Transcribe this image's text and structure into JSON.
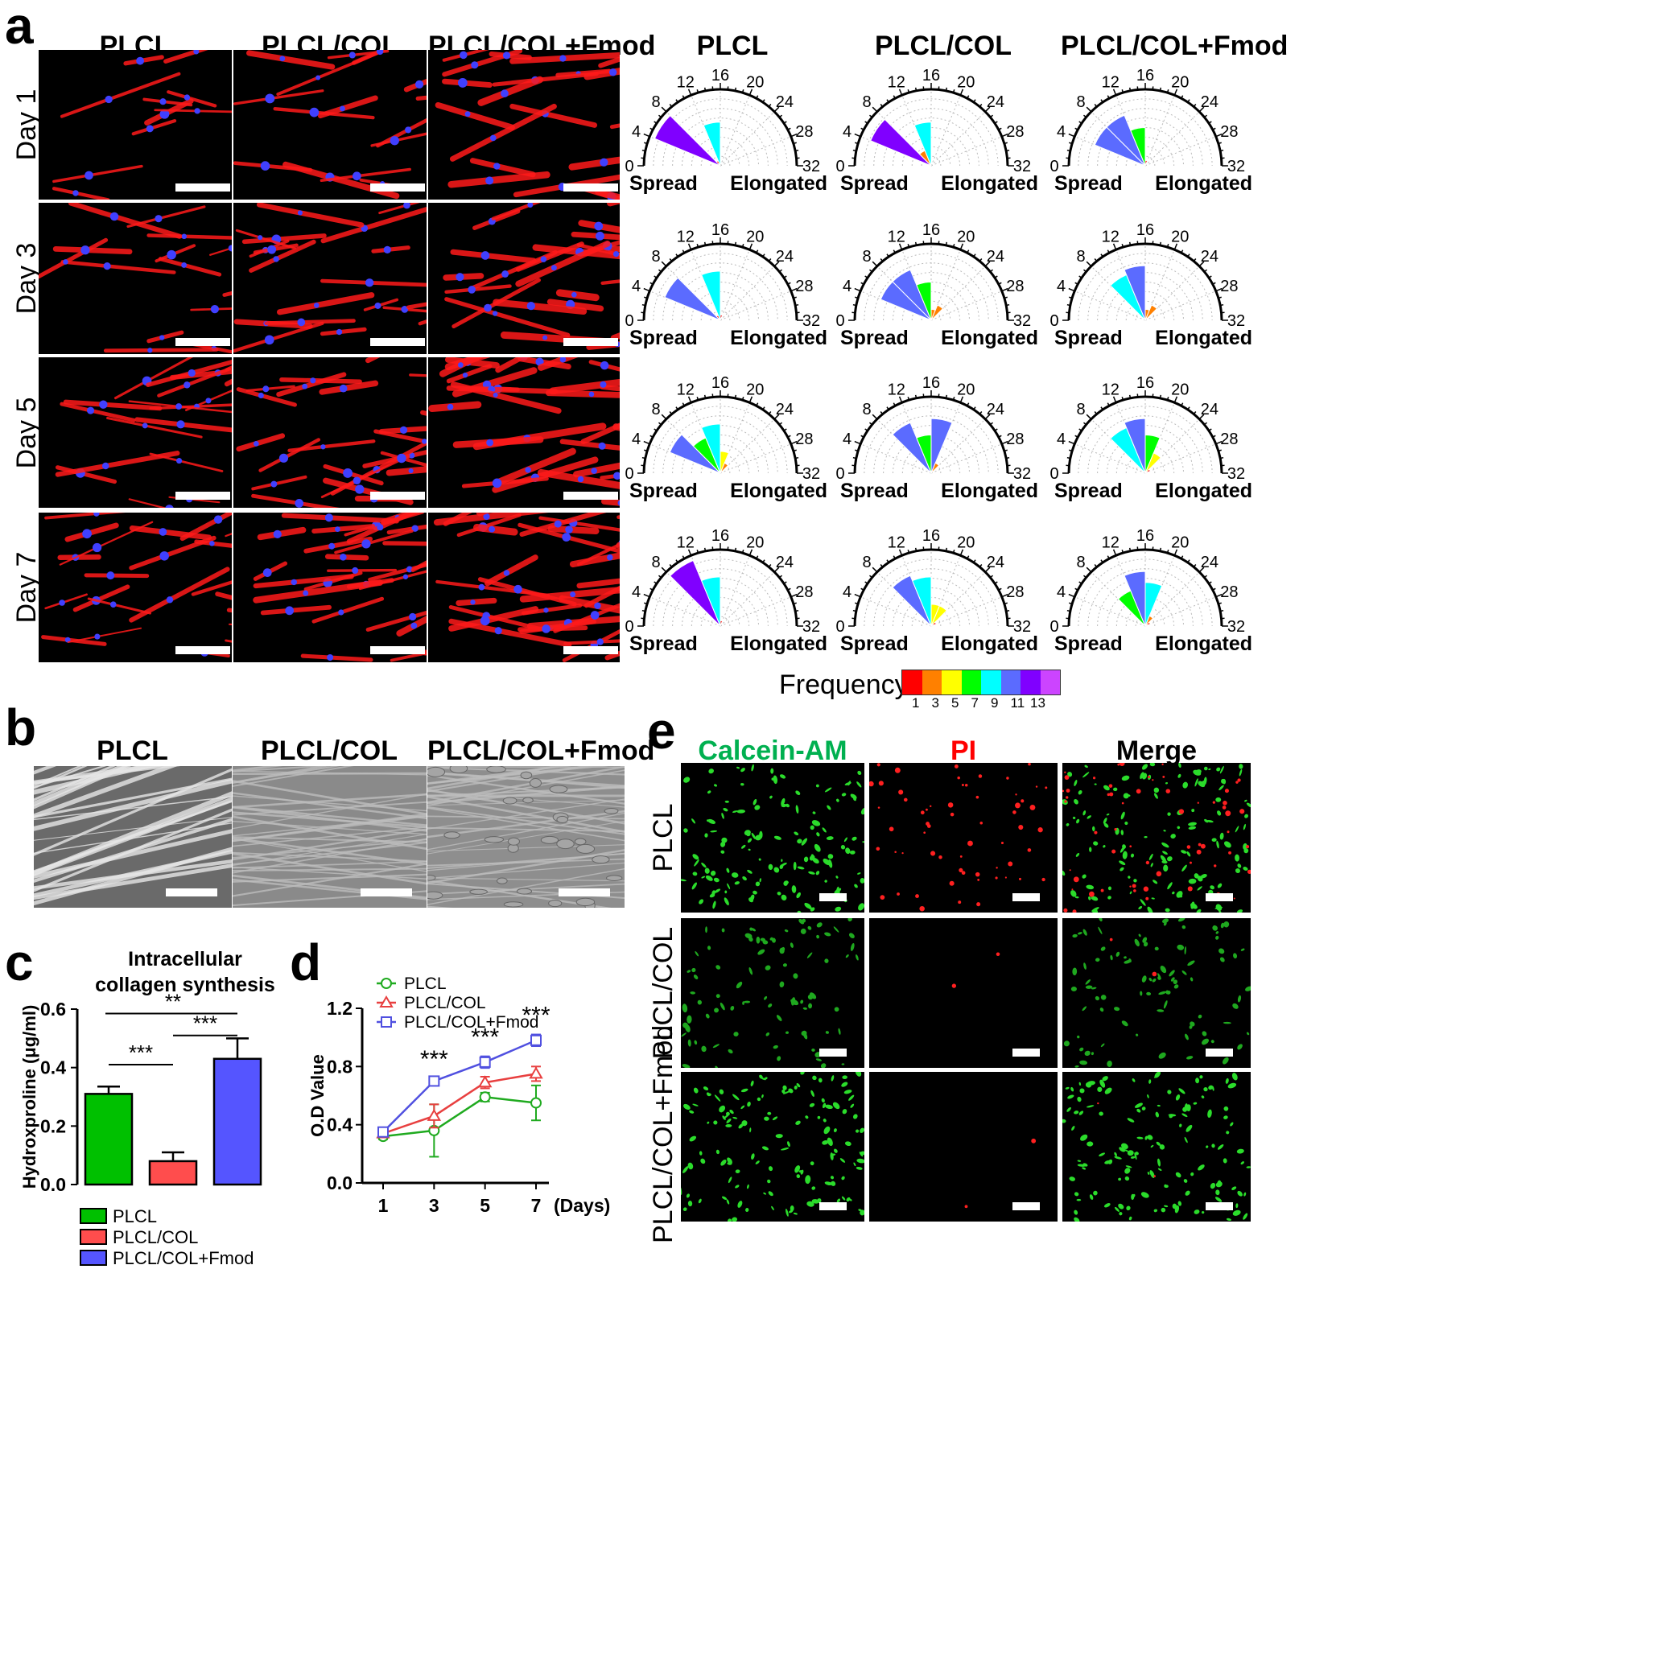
{
  "panel_a": {
    "letter": "a",
    "column_headers": [
      "PLCL",
      "PLCL/COL",
      "PLCL/COL+Fmod"
    ],
    "polar_headers": [
      "PLCL",
      "PLCL/COL",
      "PLCL/COL+Fmod"
    ],
    "row_labels": [
      "Day 1",
      "Day 3",
      "Day 5",
      "Day 7"
    ],
    "polar_ticks": [
      "0",
      "4",
      "8",
      "12",
      "16",
      "20",
      "24",
      "28",
      "32"
    ],
    "polar_left_label": "Spread",
    "polar_right_label": "Elongated",
    "frequency_label": "Frequency",
    "frequency_ticks": [
      "1",
      "3",
      "5",
      "7",
      "9",
      "11",
      "13"
    ],
    "frequency_colors": [
      "#ff0000",
      "#ff8000",
      "#ffff00",
      "#00ff00",
      "#00ffff",
      "#5b6bff",
      "#8000ff",
      "#cc44ff"
    ]
  },
  "panel_b": {
    "letter": "b",
    "column_headers": [
      "PLCL",
      "PLCL/COL",
      "PLCL/COL+Fmod"
    ]
  },
  "panel_e": {
    "letter": "e",
    "column_headers": [
      "Calcein-AM",
      "PI",
      "Merge"
    ],
    "header_colors": [
      "#00b050",
      "#ff0000",
      "#000000"
    ],
    "row_labels": [
      "PLCL",
      "PLCL/COL",
      "PLCL/COL+Fmod"
    ]
  },
  "chart_data": [
    {
      "id": "c",
      "type": "bar",
      "letter": "c",
      "title": "Intracellular collagen synthesis",
      "ylabel": "Hydroxproline (μg/ml)",
      "categories": [
        "PLCL",
        "PLCL/COL",
        "PLCL/COL+Fmod"
      ],
      "values": [
        0.31,
        0.08,
        0.43
      ],
      "errors": [
        0.025,
        0.03,
        0.07
      ],
      "colors": [
        "#00c000",
        "#ff4d4d",
        "#5555ff"
      ],
      "ylim": [
        0,
        0.6
      ],
      "yticks": [
        "0.0",
        "0.2",
        "0.4",
        "0.6"
      ],
      "significance": [
        {
          "from": 0,
          "to": 1,
          "label": "***"
        },
        {
          "from": 1,
          "to": 2,
          "label": "***"
        },
        {
          "from": 0,
          "to": 2,
          "label": "**"
        }
      ],
      "legend": [
        "PLCL",
        "PLCL/COL",
        "PLCL/COL+Fmod"
      ]
    },
    {
      "id": "d",
      "type": "line",
      "letter": "d",
      "ylabel": "O.D Value",
      "xlabel": "(Days)",
      "x": [
        1,
        3,
        5,
        7
      ],
      "xticks": [
        "1",
        "3",
        "5",
        "7"
      ],
      "yticks": [
        "0.0",
        "0.4",
        "0.8",
        "1.2"
      ],
      "ylim": [
        0,
        1.2
      ],
      "series": [
        {
          "name": "PLCL",
          "values": [
            0.32,
            0.36,
            0.59,
            0.55
          ],
          "errors": [
            0.02,
            0.18,
            0.03,
            0.12
          ],
          "color": "#1faa1f",
          "marker": "circle"
        },
        {
          "name": "PLCL/COL",
          "values": [
            0.34,
            0.46,
            0.69,
            0.75
          ],
          "errors": [
            0.02,
            0.08,
            0.04,
            0.05
          ],
          "color": "#e84040",
          "marker": "triangle"
        },
        {
          "name": "PLCL/COL+Fmod",
          "values": [
            0.35,
            0.7,
            0.83,
            0.98
          ],
          "errors": [
            0.03,
            0.02,
            0.04,
            0.04
          ],
          "color": "#5050e0",
          "marker": "square"
        }
      ],
      "significance": [
        {
          "x": 3,
          "label": "***"
        },
        {
          "x": 5,
          "label": "***"
        },
        {
          "x": 7,
          "label": "***"
        }
      ]
    }
  ]
}
